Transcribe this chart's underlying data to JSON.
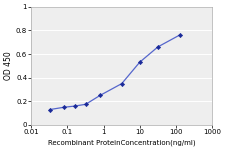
{
  "x": [
    0.032,
    0.08,
    0.16,
    0.32,
    0.8,
    3.2,
    10,
    32,
    128
  ],
  "y": [
    0.13,
    0.15,
    0.16,
    0.175,
    0.25,
    0.35,
    0.53,
    0.66,
    0.76
  ],
  "line_color": "#5566cc",
  "marker_color": "#1a2a99",
  "marker_style": "D",
  "marker_size": 2.2,
  "line_width": 0.9,
  "ylabel": "OD 450",
  "xlabel": "Recombinant ProteinConcentration(ng/ml)",
  "ylim": [
    0,
    1.0
  ],
  "yticks": [
    0,
    0.2,
    0.4,
    0.6,
    0.8,
    1.0
  ],
  "ytick_labels": [
    "0",
    "0.2",
    "0.4",
    "0.6",
    "0.8",
    "1"
  ],
  "xtick_labels": [
    "0.01",
    "0.1",
    "1",
    "10",
    "100",
    "1000"
  ],
  "xtick_vals": [
    0.01,
    0.1,
    1,
    10,
    100,
    1000
  ],
  "xlim": [
    0.01,
    1000
  ],
  "bg_color": "#ffffff",
  "plot_bg_color": "#eeeeee",
  "grid_color": "#ffffff",
  "grid_linewidth": 0.7,
  "xlabel_fontsize": 5.0,
  "ylabel_fontsize": 5.5,
  "tick_fontsize": 5.0,
  "spine_color": "#aaaaaa",
  "spine_linewidth": 0.5
}
